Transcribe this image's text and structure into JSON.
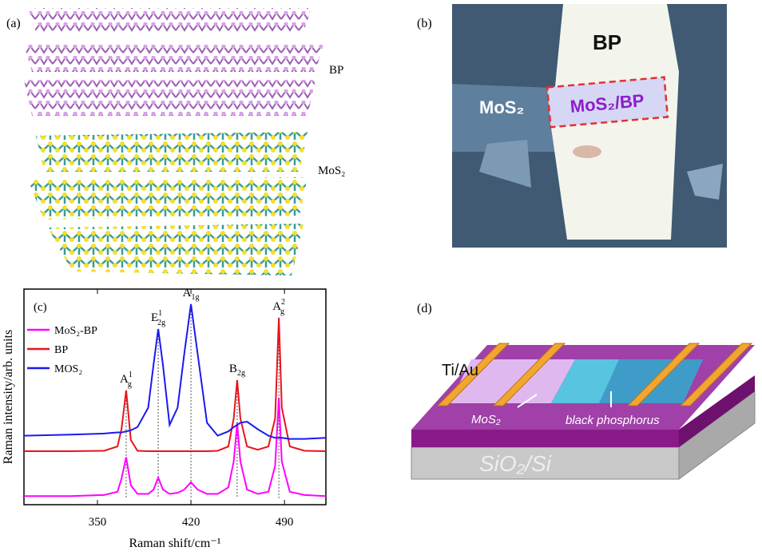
{
  "panels": {
    "a": {
      "label": "(a)",
      "bp": "BP",
      "mos2": "MoS₂"
    },
    "b": {
      "label": "(b)",
      "bp": "BP",
      "mos2": "MoS₂",
      "hetero": "MoS₂/BP"
    },
    "d": {
      "label": "(d)",
      "electrode": "Ti/Au",
      "mos2": "MoS₂",
      "bp": "black phosphorus",
      "substrate": "SiO₂/Si"
    }
  },
  "chart_data": {
    "type": "line",
    "panel_label": "(c)",
    "x_label": "Raman shift/cm⁻¹",
    "y_label": "Raman intensity/arb. units",
    "xlim": [
      295,
      521
    ],
    "xticks": [
      350,
      420,
      490
    ],
    "ylim": [
      0,
      100
    ],
    "x": [
      295,
      330,
      355,
      365,
      368,
      371.5,
      375,
      380,
      388,
      392,
      395.5,
      399,
      404,
      410,
      415,
      420,
      425,
      432,
      440,
      448,
      452,
      454.6,
      457,
      462,
      470,
      478,
      483,
      485.8,
      488,
      494,
      505,
      521
    ],
    "series": [
      {
        "name": "MoS₂-BP",
        "color": "#ff00ff",
        "values": [
          4,
          4,
          4.5,
          6,
          12,
          22,
          9,
          5,
          5,
          7,
          12.6,
          7,
          5,
          5.5,
          7,
          10.4,
          7,
          5,
          5,
          8,
          20,
          37.8,
          20,
          7,
          5,
          6,
          18,
          49.6,
          20,
          6,
          4.5,
          4
        ]
      },
      {
        "name": "BP",
        "color": "#e8141c",
        "values": [
          24.8,
          24.8,
          25,
          27,
          35,
          53,
          30,
          25,
          24.8,
          24.8,
          24.8,
          24.8,
          24.8,
          24.8,
          24.8,
          24.8,
          24.8,
          24.8,
          25,
          27,
          40,
          57.8,
          40,
          27,
          25.5,
          27,
          40,
          86.7,
          45,
          27,
          25,
          24.8
        ]
      },
      {
        "name": "MOS₂",
        "color": "#1a1aee",
        "values": [
          32,
          32.5,
          33,
          33.5,
          33.5,
          34,
          34.5,
          36,
          45,
          65,
          81.5,
          65,
          37,
          45,
          70,
          93,
          70,
          38,
          32,
          34,
          36,
          37,
          38,
          38.5,
          35,
          32,
          31,
          31,
          31,
          30.5,
          30.5,
          31
        ]
      }
    ],
    "annotations": [
      {
        "base": "A",
        "sub": "g",
        "sup": "1",
        "x": 371.5,
        "y": 53
      },
      {
        "base": "E",
        "sub": "2g",
        "sup": "1",
        "x": 395.5,
        "y": 81.5
      },
      {
        "base": "A",
        "sub": "1g",
        "x": 420,
        "y": 93
      },
      {
        "base": "B",
        "sub": "2g",
        "x": 454.6,
        "y": 57.8
      },
      {
        "base": "A",
        "sub": "g",
        "sup": "2",
        "x": 485.8,
        "y": 86.7
      }
    ]
  }
}
